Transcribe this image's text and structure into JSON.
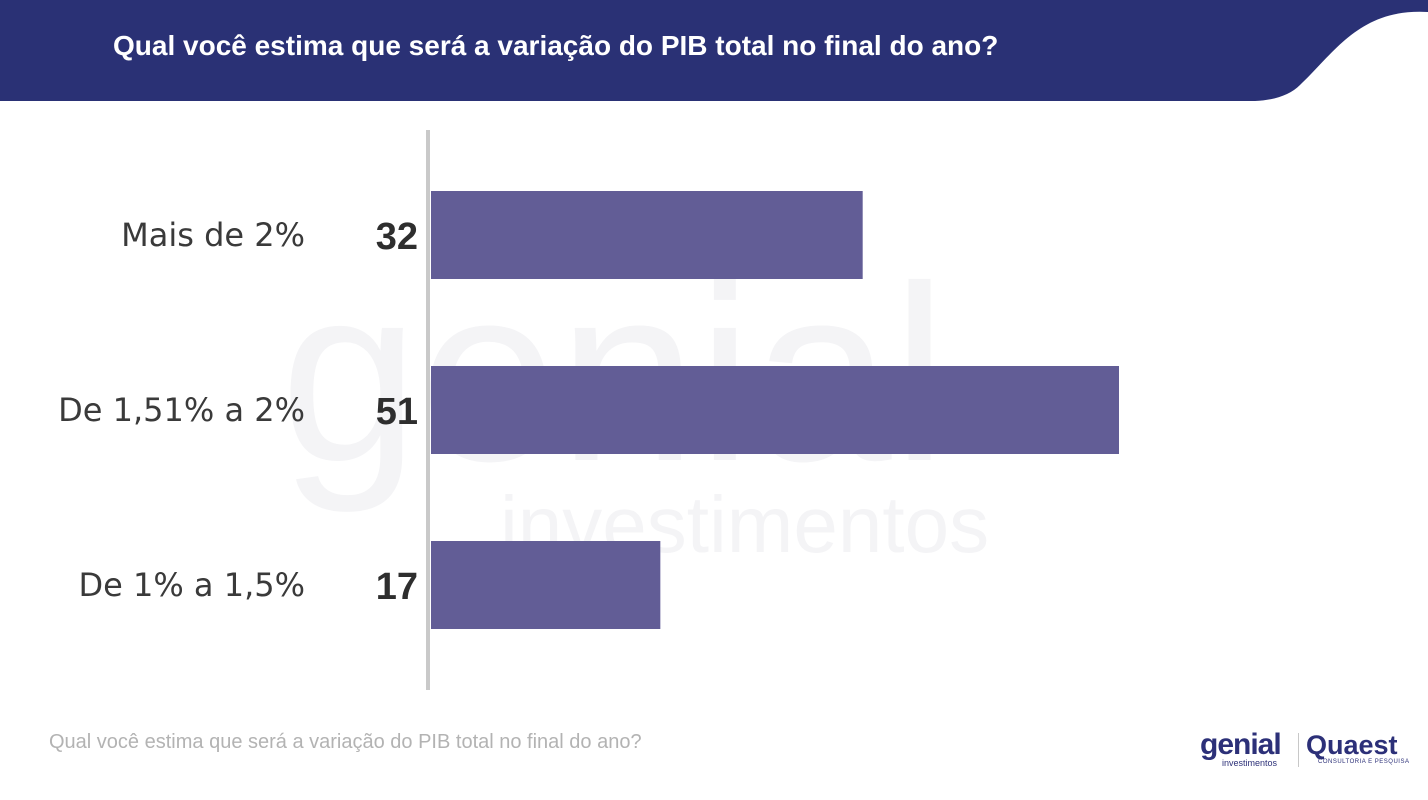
{
  "header": {
    "title": "Qual você estima que será a variação do PIB total no final do ano?",
    "color": "#2a3175"
  },
  "chart_data": {
    "type": "bar",
    "orientation": "horizontal",
    "categories": [
      "Mais de 2%",
      "De 1,51% a 2%",
      "De 1% a 1,5%"
    ],
    "values": [
      32,
      51,
      17
    ],
    "bar_color": "#625d96",
    "xlim": [
      0,
      51
    ],
    "grid": false,
    "legend": "none"
  },
  "watermark": {
    "brand": "genial",
    "tagline": "investimentos"
  },
  "footer": {
    "note": "Qual você estima que será a variação do PIB total no final do ano?"
  },
  "logos": {
    "genial": "genial",
    "genial_sub": "investimentos",
    "quaest": "Quaest",
    "quaest_sub": "CONSULTORIA E PESQUISA"
  }
}
